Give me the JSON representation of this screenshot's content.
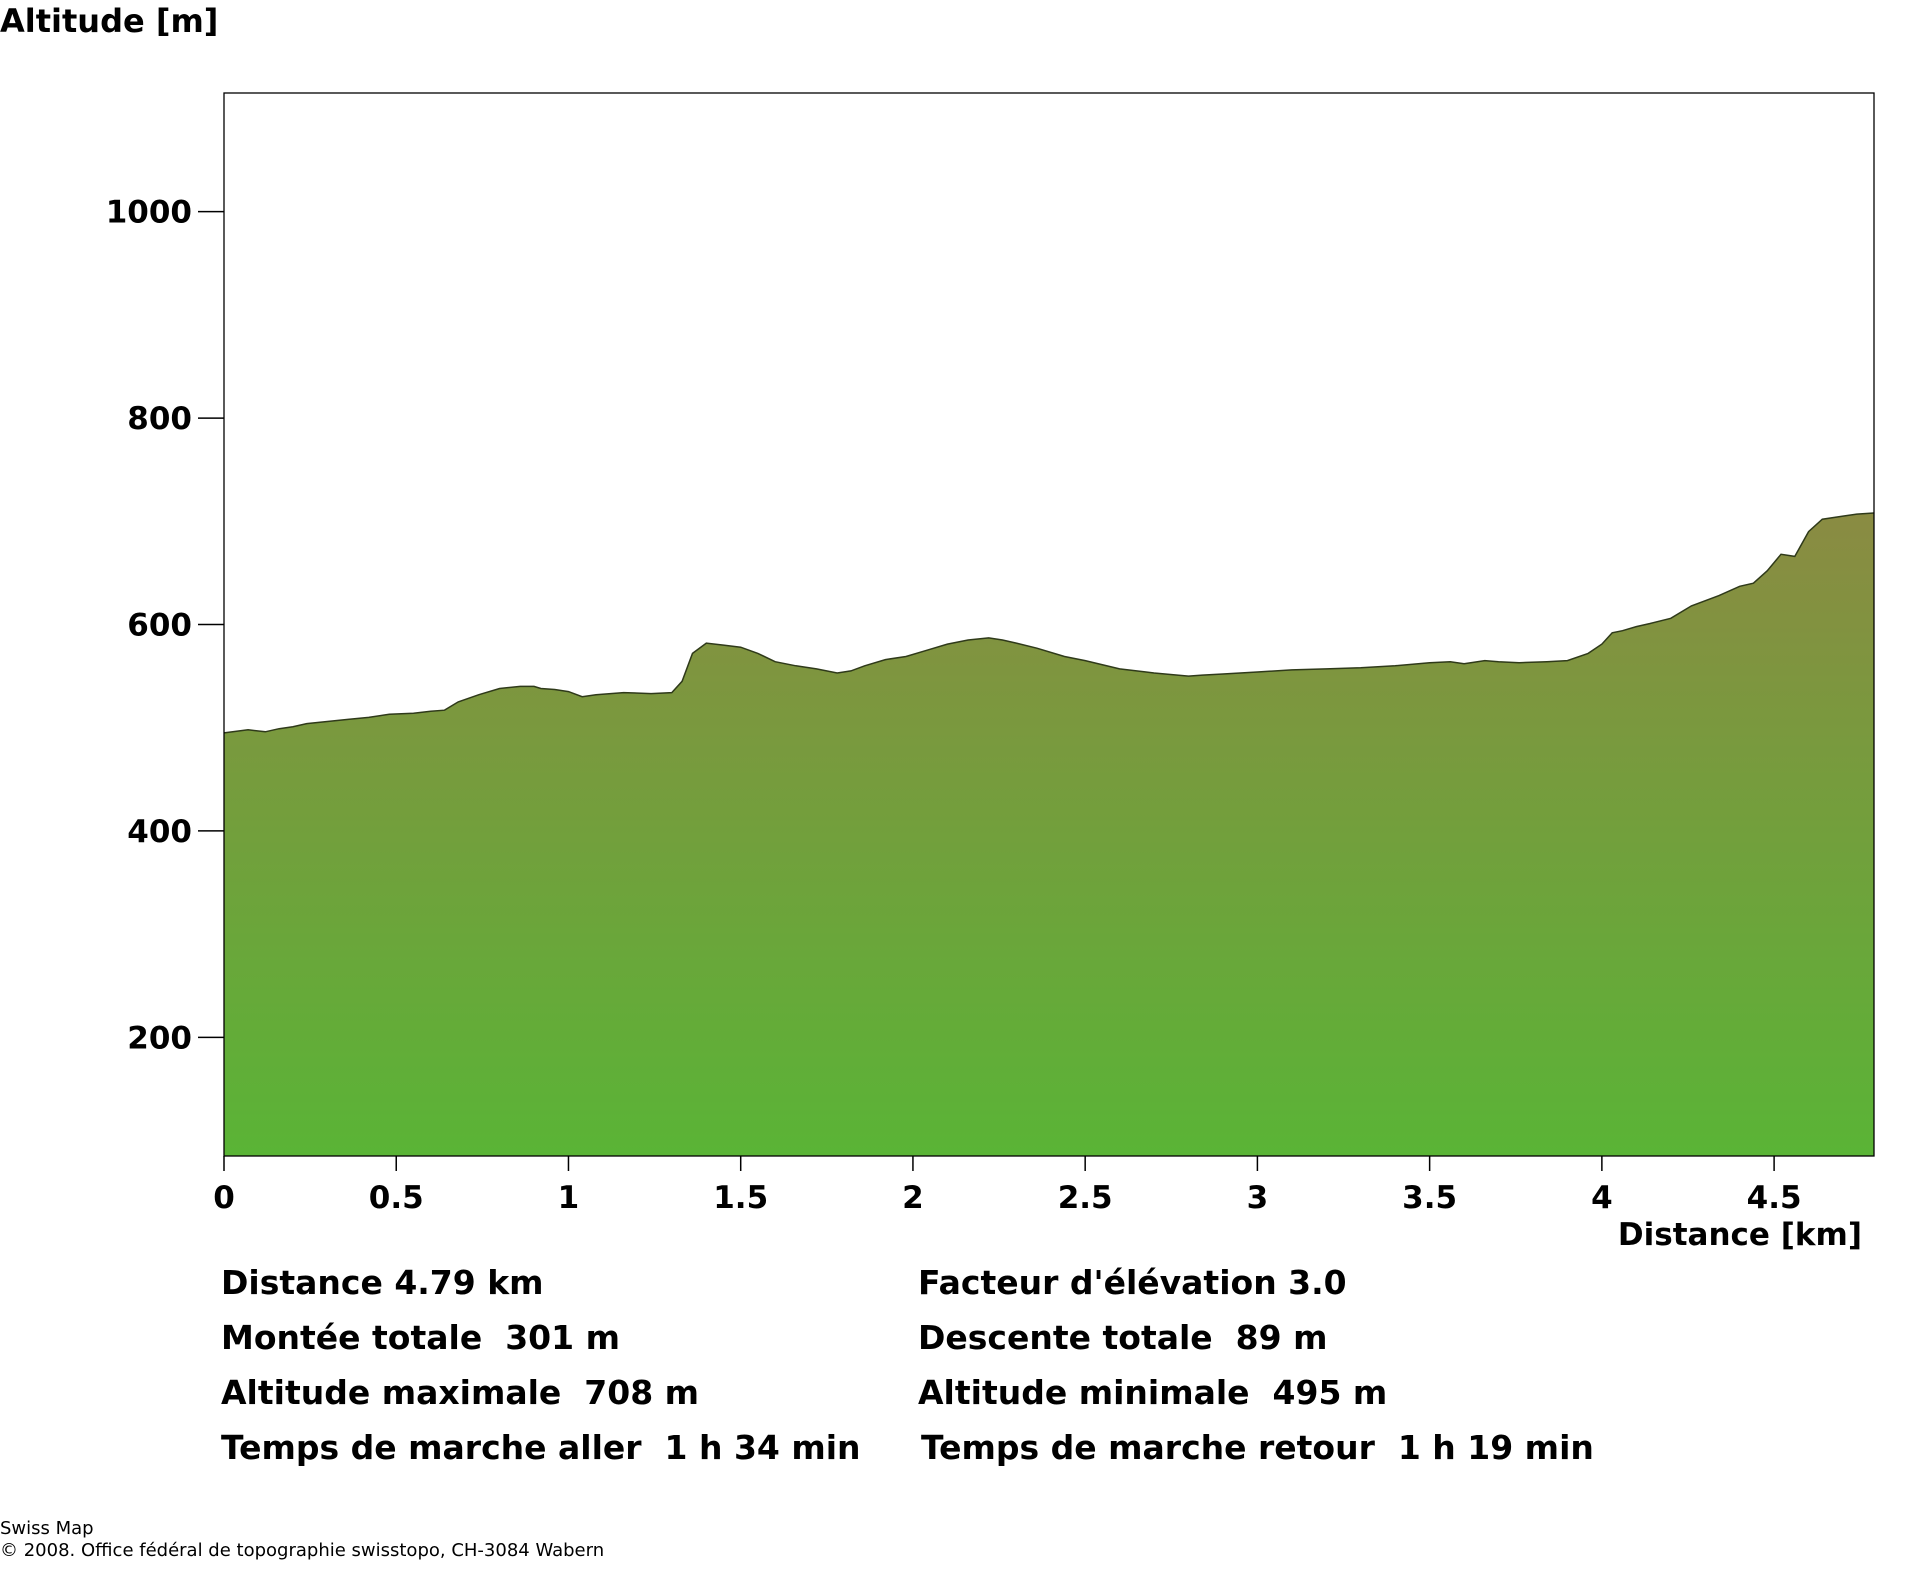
{
  "chart_data": {
    "type": "area",
    "title": "",
    "ylabel": "Altitude [m]",
    "xlabel": "Distance [km]",
    "xlim": [
      0,
      4.79
    ],
    "ylim": [
      85,
      1115
    ],
    "x_ticks": [
      0,
      0.5,
      1,
      1.5,
      2,
      2.5,
      3,
      3.5,
      4,
      4.5
    ],
    "x_tick_labels": [
      "0",
      "0.5",
      "1",
      "1.5",
      "2",
      "2.5",
      "3",
      "3.5",
      "4",
      "4.5"
    ],
    "y_ticks": [
      200,
      400,
      600,
      800,
      1000
    ],
    "y_tick_labels": [
      "200",
      "400",
      "600",
      "800",
      "1000"
    ],
    "grid": false,
    "fill_gradient": [
      "#8a8b42",
      "#5ab436"
    ],
    "series": [
      {
        "x": [
          0,
          0.07,
          0.12,
          0.16,
          0.2,
          0.24,
          0.3,
          0.36,
          0.42,
          0.48,
          0.55,
          0.6,
          0.64,
          0.68,
          0.74,
          0.8,
          0.86,
          0.9,
          0.92,
          0.96,
          1.0,
          1.04,
          1.08,
          1.16,
          1.24,
          1.3,
          1.33,
          1.36,
          1.4,
          1.45,
          1.5,
          1.55,
          1.6,
          1.66,
          1.72,
          1.78,
          1.82,
          1.86,
          1.92,
          1.98,
          2.04,
          2.1,
          2.16,
          2.22,
          2.26,
          2.3,
          2.36,
          2.44,
          2.5,
          2.6,
          2.7,
          2.8,
          2.84,
          2.9,
          3.0,
          3.1,
          3.2,
          3.3,
          3.4,
          3.5,
          3.56,
          3.6,
          3.66,
          3.7,
          3.76,
          3.84,
          3.9,
          3.96,
          4.0,
          4.03,
          4.06,
          4.1,
          4.14,
          4.2,
          4.26,
          4.34,
          4.4,
          4.44,
          4.48,
          4.52,
          4.56,
          4.6,
          4.64,
          4.7,
          4.74,
          4.79
        ],
        "y": [
          495,
          498,
          496,
          499,
          501,
          504,
          506,
          508,
          510,
          513,
          514,
          516,
          517,
          525,
          532,
          538,
          540,
          540,
          538,
          537,
          535,
          530,
          532,
          534,
          533,
          534,
          545,
          572,
          582,
          580,
          578,
          572,
          564,
          560,
          557,
          553,
          555,
          560,
          566,
          569,
          575,
          581,
          585,
          587,
          585,
          582,
          577,
          569,
          565,
          557,
          553,
          550,
          551,
          552,
          554,
          556,
          557,
          558,
          560,
          563,
          564,
          562,
          565,
          564,
          563,
          564,
          565,
          572,
          581,
          592,
          594,
          598,
          601,
          606,
          618,
          628,
          637,
          640,
          652,
          668,
          666,
          690,
          702,
          705,
          707,
          708
        ]
      }
    ]
  },
  "stats": {
    "distance": "Distance 4.79 km",
    "elevation_factor": "Facteur d'élévation 3.0",
    "total_ascent": "Montée totale  301 m",
    "total_descent": "Descente totale  89 m",
    "max_altitude": "Altitude maximale  708 m",
    "min_altitude": "Altitude minimale  495 m",
    "walk_time_out": "Temps de marche aller  1 h 34 min",
    "walk_time_return": "Temps de marche retour  1 h 19 min"
  },
  "footer": {
    "line1": "Swiss Map",
    "line2": "© 2008. Office fédéral de topographie swisstopo, CH-3084 Wabern"
  }
}
